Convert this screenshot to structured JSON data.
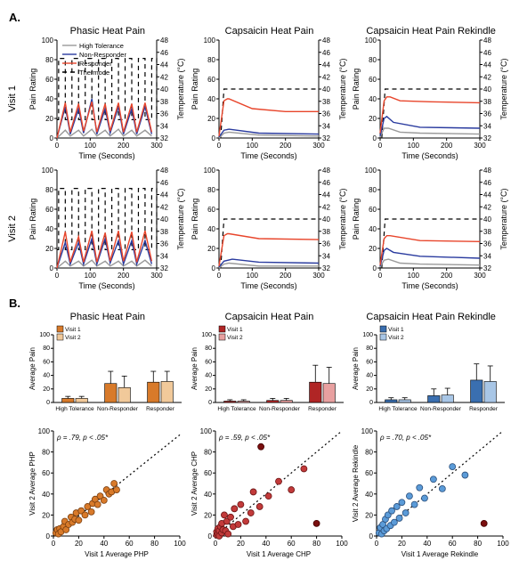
{
  "panelA_label": "A.",
  "panelB_label": "B.",
  "columns": [
    "Phasic Heat Pain",
    "Capsaicin Heat Pain",
    "Capsaicin Heat Pain Rekindle"
  ],
  "visits": [
    "Visit 1",
    "Visit 2"
  ],
  "legendA": {
    "entries": [
      {
        "label": "High Tolerance",
        "color": "#9a9a9a",
        "dash": "none"
      },
      {
        "label": "Non-Responder",
        "color": "#2a3b9f",
        "dash": "none"
      },
      {
        "label": "Responder",
        "color": "#e8452b",
        "dash": "none"
      },
      {
        "label": "Thermode",
        "color": "#000000",
        "dash": "5,4"
      }
    ]
  },
  "axisA": {
    "xlabel": "Time (Seconds)",
    "ylabelL": "Pain Rating",
    "ylabelR": "Temperature (°C)",
    "xlim": [
      0,
      300
    ],
    "xticks": [
      0,
      100,
      200,
      300
    ],
    "ylimL": [
      0,
      100
    ],
    "yticksL": [
      0,
      20,
      40,
      60,
      80,
      100
    ],
    "ylimR": [
      32,
      48
    ],
    "yticksR": [
      32,
      34,
      36,
      38,
      40,
      42,
      44,
      46,
      48
    ],
    "tick_fontsize": 8,
    "label_fontsize": 9,
    "grid_color": "#cccccc",
    "axis_color": "#000000",
    "line_width": 1.4
  },
  "A_data": {
    "phasic": {
      "thermode_y_high": 45,
      "thermode_y_low": 35,
      "pulse_edges": [
        5,
        25,
        45,
        65,
        85,
        105,
        125,
        145,
        165,
        185,
        205,
        225,
        245,
        265,
        285,
        300
      ],
      "v1": {
        "responder": [
          [
            0,
            0
          ],
          [
            25,
            36
          ],
          [
            40,
            6
          ],
          [
            65,
            35
          ],
          [
            80,
            7
          ],
          [
            105,
            37
          ],
          [
            120,
            6
          ],
          [
            145,
            35
          ],
          [
            160,
            7
          ],
          [
            185,
            36
          ],
          [
            200,
            6
          ],
          [
            225,
            35
          ],
          [
            240,
            6
          ],
          [
            265,
            36
          ],
          [
            285,
            6
          ]
        ],
        "nonresponder": [
          [
            0,
            0
          ],
          [
            25,
            32
          ],
          [
            40,
            4
          ],
          [
            65,
            30
          ],
          [
            80,
            5
          ],
          [
            105,
            40
          ],
          [
            120,
            4
          ],
          [
            145,
            30
          ],
          [
            160,
            5
          ],
          [
            185,
            32
          ],
          [
            200,
            4
          ],
          [
            225,
            30
          ],
          [
            240,
            4
          ],
          [
            265,
            32
          ],
          [
            285,
            4
          ]
        ],
        "hightol": [
          [
            0,
            0
          ],
          [
            25,
            8
          ],
          [
            40,
            2
          ],
          [
            65,
            8
          ],
          [
            80,
            2
          ],
          [
            105,
            9
          ],
          [
            120,
            2
          ],
          [
            145,
            8
          ],
          [
            160,
            2
          ],
          [
            185,
            9
          ],
          [
            200,
            2
          ],
          [
            225,
            8
          ],
          [
            240,
            2
          ],
          [
            265,
            8
          ],
          [
            285,
            2
          ]
        ]
      },
      "v2": {
        "responder": [
          [
            0,
            0
          ],
          [
            25,
            37
          ],
          [
            40,
            6
          ],
          [
            65,
            32
          ],
          [
            80,
            6
          ],
          [
            105,
            38
          ],
          [
            120,
            6
          ],
          [
            145,
            36
          ],
          [
            160,
            7
          ],
          [
            185,
            38
          ],
          [
            200,
            7
          ],
          [
            225,
            37
          ],
          [
            240,
            6
          ],
          [
            265,
            38
          ],
          [
            285,
            7
          ]
        ],
        "nonresponder": [
          [
            0,
            0
          ],
          [
            25,
            26
          ],
          [
            40,
            4
          ],
          [
            65,
            26
          ],
          [
            80,
            4
          ],
          [
            105,
            30
          ],
          [
            120,
            4
          ],
          [
            145,
            30
          ],
          [
            160,
            5
          ],
          [
            185,
            28
          ],
          [
            200,
            4
          ],
          [
            225,
            28
          ],
          [
            240,
            4
          ],
          [
            265,
            28
          ],
          [
            285,
            4
          ]
        ],
        "hightol": [
          [
            0,
            0
          ],
          [
            25,
            7
          ],
          [
            40,
            2
          ],
          [
            65,
            7
          ],
          [
            80,
            2
          ],
          [
            105,
            8
          ],
          [
            120,
            2
          ],
          [
            145,
            7
          ],
          [
            160,
            2
          ],
          [
            185,
            7
          ],
          [
            200,
            2
          ],
          [
            225,
            7
          ],
          [
            240,
            2
          ],
          [
            265,
            8
          ],
          [
            285,
            2
          ]
        ]
      }
    },
    "capsaicin": {
      "thermode_level": 40,
      "v1": {
        "responder": [
          [
            0,
            2
          ],
          [
            15,
            38
          ],
          [
            25,
            40
          ],
          [
            30,
            40
          ],
          [
            100,
            30
          ],
          [
            200,
            27
          ],
          [
            300,
            27
          ]
        ],
        "nonresponder": [
          [
            0,
            1
          ],
          [
            15,
            8
          ],
          [
            30,
            9
          ],
          [
            120,
            5
          ],
          [
            300,
            4
          ]
        ],
        "hightol": [
          [
            0,
            0
          ],
          [
            15,
            5
          ],
          [
            30,
            6
          ],
          [
            120,
            3
          ],
          [
            300,
            2
          ]
        ]
      },
      "v2": {
        "responder": [
          [
            0,
            2
          ],
          [
            15,
            33
          ],
          [
            25,
            35
          ],
          [
            30,
            35
          ],
          [
            120,
            30
          ],
          [
            300,
            29
          ]
        ],
        "nonresponder": [
          [
            0,
            1
          ],
          [
            15,
            7
          ],
          [
            40,
            9
          ],
          [
            120,
            6
          ],
          [
            300,
            5
          ]
        ],
        "hightol": [
          [
            0,
            0
          ],
          [
            15,
            4
          ],
          [
            30,
            5
          ],
          [
            120,
            2
          ],
          [
            300,
            2
          ]
        ]
      }
    },
    "rekindle": {
      "thermode_level": 40,
      "v1": {
        "responder": [
          [
            0,
            5
          ],
          [
            12,
            38
          ],
          [
            20,
            42
          ],
          [
            30,
            42
          ],
          [
            60,
            38
          ],
          [
            150,
            37
          ],
          [
            300,
            36
          ]
        ],
        "nonresponder": [
          [
            0,
            2
          ],
          [
            12,
            20
          ],
          [
            20,
            22
          ],
          [
            40,
            16
          ],
          [
            120,
            11
          ],
          [
            300,
            10
          ]
        ],
        "hightol": [
          [
            0,
            1
          ],
          [
            12,
            10
          ],
          [
            25,
            10
          ],
          [
            60,
            6
          ],
          [
            120,
            5
          ],
          [
            300,
            4
          ]
        ]
      },
      "v2": {
        "responder": [
          [
            0,
            3
          ],
          [
            12,
            30
          ],
          [
            20,
            33
          ],
          [
            30,
            33
          ],
          [
            120,
            28
          ],
          [
            300,
            27
          ]
        ],
        "nonresponder": [
          [
            0,
            2
          ],
          [
            12,
            18
          ],
          [
            20,
            20
          ],
          [
            40,
            16
          ],
          [
            120,
            12
          ],
          [
            300,
            10
          ]
        ],
        "hightol": [
          [
            0,
            1
          ],
          [
            12,
            8
          ],
          [
            25,
            9
          ],
          [
            60,
            5
          ],
          [
            120,
            4
          ],
          [
            300,
            3
          ]
        ]
      }
    }
  },
  "B_bars": {
    "groups": [
      "High Tolerance",
      "Non-Responder",
      "Responder"
    ],
    "ylabel": "Average Pain",
    "ylim": [
      0,
      100
    ],
    "yticks": [
      0,
      20,
      40,
      60,
      80,
      100
    ],
    "tick_fontsize": 7,
    "label_fontsize": 8,
    "legend": [
      "Visit 1",
      "Visit 2"
    ],
    "colors": {
      "phasic": {
        "v1": "#d87a2a",
        "v2": "#f1c99a"
      },
      "capsaicin": {
        "v1": "#b02525",
        "v2": "#e8a0a0"
      },
      "rekindle": {
        "v1": "#3a6fb0",
        "v2": "#a8c6e6"
      }
    },
    "values": {
      "phasic": {
        "v1": [
          6,
          28,
          30
        ],
        "v2": [
          6,
          22,
          31
        ],
        "err": [
          [
            3,
            3
          ],
          [
            18,
            17
          ],
          [
            16,
            15
          ]
        ]
      },
      "capsaicin": {
        "v1": [
          2,
          3,
          30
        ],
        "v2": [
          2,
          3,
          28
        ],
        "err": [
          [
            2,
            2
          ],
          [
            3,
            3
          ],
          [
            25,
            24
          ]
        ]
      },
      "rekindle": {
        "v1": [
          4,
          10,
          33
        ],
        "v2": [
          4,
          11,
          31
        ],
        "err": [
          [
            3,
            3
          ],
          [
            10,
            10
          ],
          [
            24,
            23
          ]
        ]
      }
    }
  },
  "B_scatter": {
    "xlim": [
      0,
      100
    ],
    "ylim": [
      0,
      100
    ],
    "ticks": [
      0,
      20,
      40,
      60,
      80,
      100
    ],
    "tick_fontsize": 8,
    "phasic": {
      "xlabel": "Visit 1 Average PHP",
      "ylabel": "Visit 2 Average PHP",
      "stat": "ρ = .79, p < .05*",
      "color": "#d87a2a",
      "edge": "#7a3f10",
      "outlier_color": "#8a1a1a",
      "pts": [
        [
          2,
          3
        ],
        [
          3,
          6
        ],
        [
          4,
          2
        ],
        [
          5,
          7
        ],
        [
          6,
          4
        ],
        [
          8,
          9
        ],
        [
          9,
          14
        ],
        [
          10,
          6
        ],
        [
          12,
          11
        ],
        [
          14,
          18
        ],
        [
          15,
          13
        ],
        [
          17,
          16
        ],
        [
          18,
          22
        ],
        [
          20,
          15
        ],
        [
          22,
          24
        ],
        [
          25,
          20
        ],
        [
          27,
          28
        ],
        [
          30,
          23
        ],
        [
          31,
          31
        ],
        [
          33,
          35
        ],
        [
          35,
          30
        ],
        [
          37,
          38
        ],
        [
          40,
          34
        ],
        [
          42,
          44
        ],
        [
          44,
          40
        ],
        [
          46,
          42
        ],
        [
          48,
          50
        ],
        [
          50,
          44
        ]
      ],
      "outliers": []
    },
    "capsaicin": {
      "xlabel": "Visit 1 Average CHP",
      "ylabel": "Visit 2 Average CHP",
      "stat": "ρ = .59, p < .05*",
      "color": "#c23a3a",
      "edge": "#6a1414",
      "outlier_color": "#7a0f0f",
      "pts": [
        [
          1,
          1
        ],
        [
          1,
          4
        ],
        [
          2,
          2
        ],
        [
          2,
          7
        ],
        [
          3,
          5
        ],
        [
          3,
          0
        ],
        [
          4,
          9
        ],
        [
          5,
          3
        ],
        [
          5,
          12
        ],
        [
          6,
          6
        ],
        [
          7,
          20
        ],
        [
          8,
          5
        ],
        [
          9,
          14
        ],
        [
          10,
          2
        ],
        [
          12,
          18
        ],
        [
          14,
          9
        ],
        [
          15,
          26
        ],
        [
          18,
          11
        ],
        [
          20,
          30
        ],
        [
          24,
          14
        ],
        [
          28,
          22
        ],
        [
          30,
          42
        ],
        [
          35,
          28
        ],
        [
          42,
          38
        ],
        [
          50,
          52
        ],
        [
          60,
          44
        ],
        [
          70,
          64
        ]
      ],
      "outliers": [
        [
          80,
          12
        ],
        [
          36,
          85
        ]
      ]
    },
    "rekindle": {
      "xlabel": "Visit 1 Average Rekindle",
      "ylabel": "Visit 2 Average Rekindle",
      "stat": "ρ = .70, p < .05*",
      "color": "#5b9bd8",
      "edge": "#2a4e7a",
      "outlier_color": "#7a0f0f",
      "pts": [
        [
          2,
          3
        ],
        [
          3,
          8
        ],
        [
          4,
          2
        ],
        [
          5,
          11
        ],
        [
          6,
          5
        ],
        [
          7,
          16
        ],
        [
          8,
          7
        ],
        [
          9,
          20
        ],
        [
          11,
          10
        ],
        [
          12,
          24
        ],
        [
          14,
          13
        ],
        [
          16,
          28
        ],
        [
          18,
          17
        ],
        [
          20,
          32
        ],
        [
          23,
          22
        ],
        [
          26,
          38
        ],
        [
          30,
          30
        ],
        [
          34,
          46
        ],
        [
          38,
          36
        ],
        [
          45,
          54
        ],
        [
          52,
          45
        ],
        [
          60,
          66
        ],
        [
          70,
          58
        ]
      ],
      "outliers": [
        [
          85,
          12
        ]
      ]
    }
  }
}
